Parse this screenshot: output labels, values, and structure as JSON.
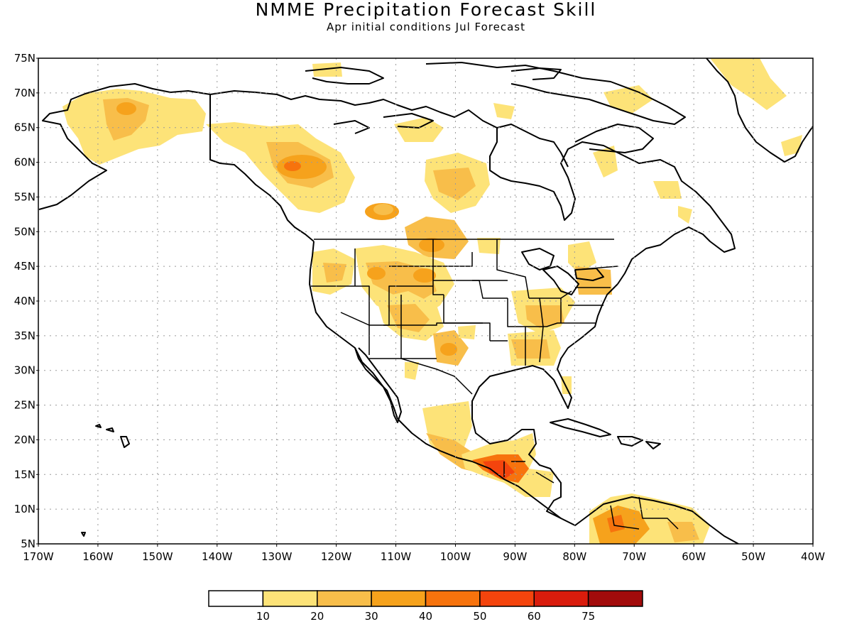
{
  "title": "NMME Precipitation Forecast Skill",
  "subtitle": "Apr initial conditions  Jul Forecast",
  "map": {
    "lon_range": [
      -170,
      -40
    ],
    "lat_range": [
      5,
      75
    ],
    "lat_labels": [
      "75N",
      "70N",
      "65N",
      "60N",
      "55N",
      "50N",
      "45N",
      "40N",
      "35N",
      "30N",
      "25N",
      "20N",
      "15N",
      "10N",
      "5N"
    ],
    "lon_labels": [
      "170W",
      "160W",
      "150W",
      "140W",
      "130W",
      "120W",
      "110W",
      "100W",
      "90W",
      "80W",
      "70W",
      "60W",
      "50W",
      "40W"
    ],
    "grid": true
  },
  "legend": {
    "colors": [
      "#ffffff",
      "#fde378",
      "#f8be4a",
      "#f6a21c",
      "#f7730d",
      "#f4440d",
      "#d91c0c",
      "#a20b0b"
    ],
    "labels": [
      "10",
      "20",
      "30",
      "40",
      "50",
      "60",
      "75"
    ]
  }
}
